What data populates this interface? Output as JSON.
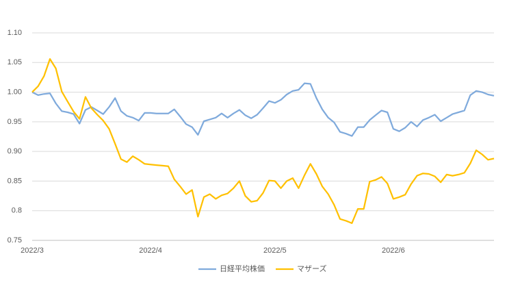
{
  "chart_data": {
    "type": "line",
    "categories": [
      "2022/3",
      null,
      null,
      null,
      null,
      null,
      null,
      null,
      null,
      null,
      null,
      null,
      null,
      null,
      null,
      null,
      null,
      null,
      null,
      null,
      "2022/4",
      null,
      null,
      null,
      null,
      null,
      null,
      null,
      null,
      null,
      null,
      null,
      null,
      null,
      null,
      null,
      null,
      null,
      null,
      null,
      null,
      "2022/5",
      null,
      null,
      null,
      null,
      null,
      null,
      null,
      null,
      null,
      null,
      null,
      null,
      null,
      null,
      null,
      null,
      null,
      null,
      null,
      "2022/6",
      null,
      null,
      null,
      null,
      null,
      null,
      null,
      null,
      null,
      null,
      null,
      null,
      null,
      null,
      null,
      null,
      null
    ],
    "series": [
      {
        "name": "日経平均株価",
        "color": "#7faadc",
        "values": [
          1.0,
          0.995,
          0.997,
          0.998,
          0.981,
          0.968,
          0.966,
          0.963,
          0.947,
          0.97,
          0.975,
          0.969,
          0.963,
          0.975,
          0.99,
          0.968,
          0.96,
          0.957,
          0.952,
          0.965,
          0.965,
          0.964,
          0.964,
          0.964,
          0.971,
          0.959,
          0.946,
          0.941,
          0.928,
          0.951,
          0.954,
          0.957,
          0.964,
          0.957,
          0.964,
          0.97,
          0.961,
          0.956,
          0.962,
          0.973,
          0.985,
          0.982,
          0.987,
          0.996,
          1.002,
          1.004,
          1.015,
          1.014,
          0.99,
          0.971,
          0.957,
          0.949,
          0.933,
          0.93,
          0.926,
          0.941,
          0.941,
          0.953,
          0.961,
          0.969,
          0.966,
          0.938,
          0.934,
          0.94,
          0.95,
          0.942,
          0.953,
          0.957,
          0.962,
          0.951,
          0.957,
          0.963,
          0.966,
          0.969,
          0.995,
          1.002,
          1.0,
          0.996,
          0.994
        ]
      },
      {
        "name": "マザーズ",
        "color": "#ffc000",
        "values": [
          1.0,
          1.01,
          1.027,
          1.056,
          1.04,
          1.001,
          0.984,
          0.967,
          0.955,
          0.992,
          0.973,
          0.962,
          0.952,
          0.938,
          0.913,
          0.887,
          0.882,
          0.892,
          0.886,
          0.879,
          0.878,
          0.877,
          0.876,
          0.875,
          0.853,
          0.841,
          0.828,
          0.835,
          0.79,
          0.823,
          0.828,
          0.82,
          0.826,
          0.829,
          0.838,
          0.85,
          0.825,
          0.815,
          0.817,
          0.83,
          0.851,
          0.85,
          0.838,
          0.85,
          0.855,
          0.838,
          0.86,
          0.879,
          0.862,
          0.841,
          0.828,
          0.81,
          0.786,
          0.783,
          0.779,
          0.803,
          0.803,
          0.849,
          0.852,
          0.857,
          0.846,
          0.82,
          0.823,
          0.827,
          0.845,
          0.859,
          0.863,
          0.862,
          0.858,
          0.848,
          0.861,
          0.859,
          0.861,
          0.864,
          0.88,
          0.902,
          0.895,
          0.886,
          0.888
        ]
      }
    ],
    "ylim": [
      0.75,
      1.1
    ],
    "yticks": [
      {
        "value": 0.75,
        "label": "0.75"
      },
      0.8,
      {
        "value": 0.85,
        "label": "0.85"
      },
      {
        "value": 0.9,
        "label": "0.90"
      },
      0.95,
      {
        "value": 1.0,
        "label": "1.00"
      },
      1.05,
      {
        "value": 1.1,
        "label": "1.10"
      }
    ],
    "grid": true,
    "legend": "bottom"
  }
}
